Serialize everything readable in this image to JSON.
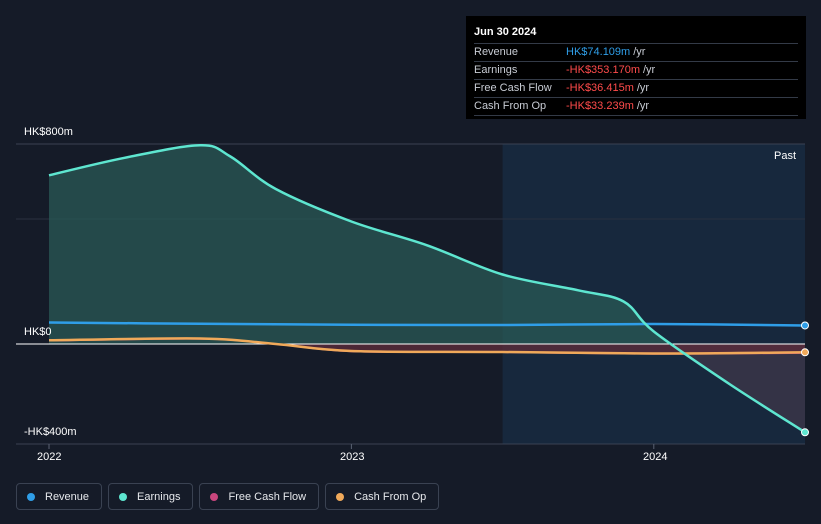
{
  "tooltip": {
    "date": "Jun 30 2024",
    "rows": [
      {
        "label": "Revenue",
        "value": "HK$74.109m",
        "unit": "/yr",
        "color": "#2f9ee8"
      },
      {
        "label": "Earnings",
        "value": "-HK$353.170m",
        "unit": "/yr",
        "color": "#ff4b4b"
      },
      {
        "label": "Free Cash Flow",
        "value": "-HK$36.415m",
        "unit": "/yr",
        "color": "#ff4b4b"
      },
      {
        "label": "Cash From Op",
        "value": "-HK$33.239m",
        "unit": "/yr",
        "color": "#ff4b4b"
      }
    ]
  },
  "past_label": "Past",
  "legend": [
    {
      "label": "Revenue",
      "color": "#2f9ee8"
    },
    {
      "label": "Earnings",
      "color": "#5ee6d0"
    },
    {
      "label": "Free Cash Flow",
      "color": "#c8467d"
    },
    {
      "label": "Cash From Op",
      "color": "#f0a95a"
    }
  ],
  "chart_data": {
    "type": "line",
    "y_tick_labels": [
      "HK$800m",
      "HK$0",
      "-HK$400m"
    ],
    "x_tick_labels": [
      "2022",
      "2023",
      "2024"
    ],
    "ylim": [
      -400,
      800
    ],
    "xlim": [
      2022.0,
      2024.5
    ],
    "grid": true,
    "past_start": 2023.5,
    "series": [
      {
        "name": "Revenue",
        "color": "#2f9ee8",
        "x": [
          2022.0,
          2022.5,
          2023.0,
          2023.5,
          2024.0,
          2024.5
        ],
        "y": [
          86,
          81,
          77,
          76,
          80,
          74.109
        ]
      },
      {
        "name": "Earnings",
        "color": "#5ee6d0",
        "x": [
          2022.0,
          2022.25,
          2022.5,
          2022.6,
          2022.75,
          2023.0,
          2023.25,
          2023.5,
          2023.75,
          2023.9,
          2024.0,
          2024.25,
          2024.5
        ],
        "y": [
          675,
          745,
          795,
          750,
          620,
          490,
          395,
          278,
          215,
          170,
          50,
          -160,
          -353.17
        ]
      },
      {
        "name": "Free Cash Flow",
        "color": "#c8467d",
        "x": [
          2022.0,
          2022.5,
          2022.75,
          2023.0,
          2023.5,
          2024.0,
          2024.5
        ],
        "y": [
          13,
          20,
          0,
          -30,
          -33,
          -40,
          -36.415
        ]
      },
      {
        "name": "Cash From Op",
        "color": "#f0a95a",
        "x": [
          2022.0,
          2022.5,
          2022.75,
          2023.0,
          2023.5,
          2024.0,
          2024.5
        ],
        "y": [
          15,
          22,
          0,
          -28,
          -32,
          -38,
          -33.239
        ]
      }
    ]
  }
}
